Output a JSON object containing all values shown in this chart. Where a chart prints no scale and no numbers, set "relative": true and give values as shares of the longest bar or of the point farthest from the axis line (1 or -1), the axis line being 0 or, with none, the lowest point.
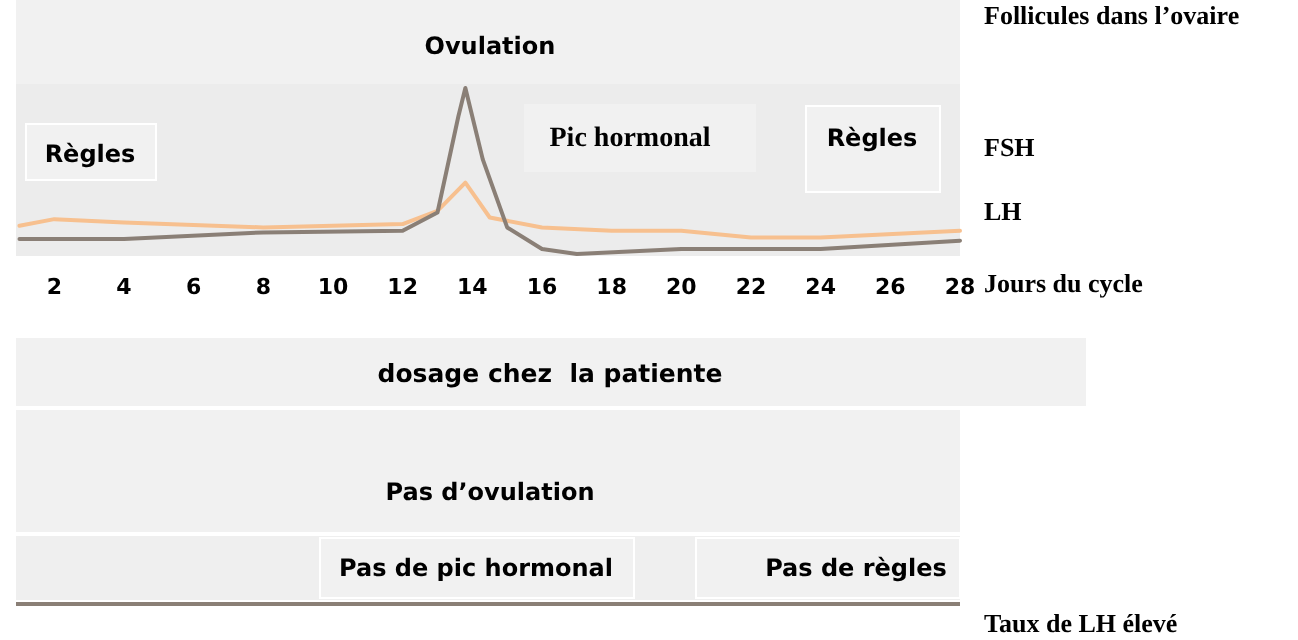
{
  "chart_data": [
    {
      "type": "line",
      "relative": true,
      "xlabel": "Jours du cycle",
      "xlim": [
        0.9,
        28
      ],
      "xticks": [
        2,
        4,
        6,
        8,
        10,
        12,
        14,
        16,
        18,
        20,
        22,
        24,
        26,
        28
      ],
      "annotations": [
        "Follicules dans l’ovaire",
        "Ovulation",
        "Règles",
        "Pic hormonal",
        "Règles"
      ],
      "series": [
        {
          "name": "FSH",
          "color": "#f7c08f",
          "x": [
            1,
            2,
            4,
            8,
            12,
            13,
            13.8,
            14.5,
            16,
            18,
            20,
            22,
            24,
            28
          ],
          "values": [
            0.17,
            0.21,
            0.19,
            0.16,
            0.18,
            0.26,
            0.43,
            0.22,
            0.16,
            0.14,
            0.14,
            0.1,
            0.1,
            0.14
          ]
        },
        {
          "name": "LH",
          "color": "#8a7f76",
          "x": [
            1,
            4,
            8,
            12,
            13,
            13.6,
            13.8,
            14.3,
            15,
            16,
            17,
            20,
            24,
            28
          ],
          "values": [
            0.09,
            0.09,
            0.13,
            0.14,
            0.25,
            0.83,
            1,
            0.57,
            0.16,
            0.03,
            0,
            0.03,
            0.03,
            0.08
          ]
        }
      ]
    },
    {
      "type": "other",
      "annotations": [
        "dosage chez  la patiente",
        "Pas d’ovulation",
        "Pas de pic hormonal",
        "Pas de règles",
        "Taux de LH élevé"
      ]
    }
  ]
}
